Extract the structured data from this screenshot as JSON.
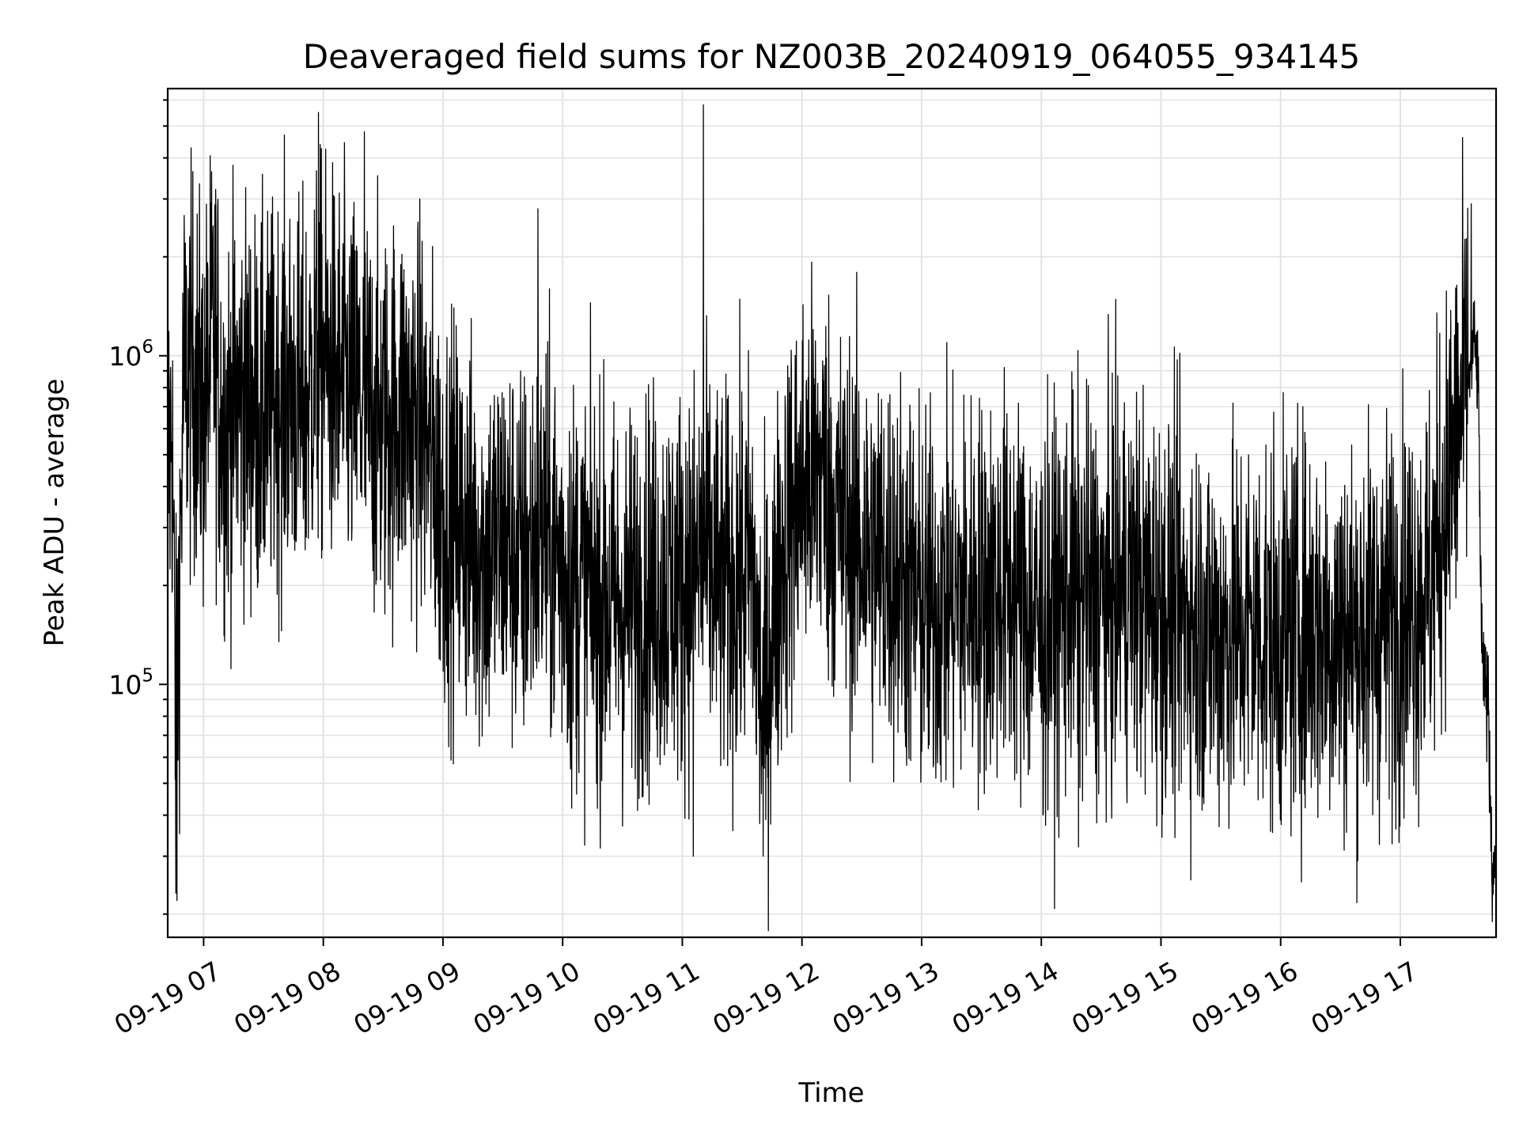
{
  "chart_data": {
    "type": "line",
    "title": "Deaveraged field sums for NZ003B_20240919_064055_934145",
    "xlabel": "Time",
    "ylabel": "Peak ADU - average",
    "yscale": "log",
    "ylim": [
      17000,
      6500000
    ],
    "xlim": [
      "2024-09-19 06:42",
      "2024-09-19 17:48"
    ],
    "grid": true,
    "grid_minor": true,
    "line_color": "#000000",
    "x_ticks": [
      "09-19 07",
      "09-19 08",
      "09-19 09",
      "09-19 10",
      "09-19 11",
      "09-19 12",
      "09-19 13",
      "09-19 14",
      "09-19 15",
      "09-19 16",
      "09-19 17"
    ],
    "x_tick_times": [
      "2024-09-19 07:00",
      "2024-09-19 08:00",
      "2024-09-19 09:00",
      "2024-09-19 10:00",
      "2024-09-19 11:00",
      "2024-09-19 12:00",
      "2024-09-19 13:00",
      "2024-09-19 14:00",
      "2024-09-19 15:00",
      "2024-09-19 16:00",
      "2024-09-19 17:00"
    ],
    "y_ticks": [
      {
        "value": 100000,
        "base": "10",
        "exp": "5"
      },
      {
        "value": 1000000,
        "base": "10",
        "exp": "6"
      }
    ],
    "series": [
      {
        "style": "dense noisy trace (~5000 samples, representative points)",
        "x": [
          "2024-09-19 06:42",
          "2024-09-19 06:43",
          "2024-09-19 06:44",
          "2024-09-19 06:45",
          "2024-09-19 06:46",
          "2024-09-19 06:50",
          "2024-09-19 06:55",
          "2024-09-19 07:00",
          "2024-09-19 07:05",
          "2024-09-19 07:10",
          "2024-09-19 07:15",
          "2024-09-19 07:20",
          "2024-09-19 07:30",
          "2024-09-19 07:40",
          "2024-09-19 07:50",
          "2024-09-19 07:58",
          "2024-09-19 08:05",
          "2024-09-19 08:15",
          "2024-09-19 08:20",
          "2024-09-19 08:30",
          "2024-09-19 08:40",
          "2024-09-19 08:50",
          "2024-09-19 09:00",
          "2024-09-19 09:10",
          "2024-09-19 09:20",
          "2024-09-19 09:30",
          "2024-09-19 09:40",
          "2024-09-19 09:48",
          "2024-09-19 10:00",
          "2024-09-19 10:15",
          "2024-09-19 10:30",
          "2024-09-19 10:45",
          "2024-09-19 11:00",
          "2024-09-19 11:11",
          "2024-09-19 11:20",
          "2024-09-19 11:35",
          "2024-09-19 11:40",
          "2024-09-19 11:50",
          "2024-09-19 12:00",
          "2024-09-19 12:10",
          "2024-09-19 12:20",
          "2024-09-19 12:35",
          "2024-09-19 12:50",
          "2024-09-19 13:00",
          "2024-09-19 13:15",
          "2024-09-19 13:30",
          "2024-09-19 13:45",
          "2024-09-19 14:00",
          "2024-09-19 14:15",
          "2024-09-19 14:30",
          "2024-09-19 14:45",
          "2024-09-19 15:00",
          "2024-09-19 15:15",
          "2024-09-19 15:30",
          "2024-09-19 15:45",
          "2024-09-19 16:00",
          "2024-09-19 16:15",
          "2024-09-19 16:30",
          "2024-09-19 16:45",
          "2024-09-19 17:00",
          "2024-09-19 17:15",
          "2024-09-19 17:20",
          "2024-09-19 17:28",
          "2024-09-19 17:32",
          "2024-09-19 17:35",
          "2024-09-19 17:37",
          "2024-09-19 17:39",
          "2024-09-19 17:41",
          "2024-09-19 17:44",
          "2024-09-19 17:46",
          "2024-09-19 17:48"
        ],
        "values": [
          600000,
          450000,
          700000,
          250000,
          60000,
          850000,
          900000,
          650000,
          1200000,
          600000,
          700000,
          750000,
          650000,
          800000,
          700000,
          1000000,
          900000,
          750000,
          700000,
          600000,
          700000,
          600000,
          350000,
          300000,
          250000,
          280000,
          230000,
          300000,
          230000,
          190000,
          170000,
          200000,
          200000,
          250000,
          190000,
          230000,
          80000,
          250000,
          400000,
          450000,
          300000,
          250000,
          220000,
          170000,
          180000,
          190000,
          200000,
          150000,
          190000,
          180000,
          200000,
          170000,
          160000,
          140000,
          150000,
          140000,
          150000,
          140000,
          150000,
          170000,
          200000,
          300000,
          550000,
          750000,
          900000,
          1100000,
          850000,
          110000,
          90000,
          28000,
          30000
        ],
        "spikes": [
          {
            "x": "2024-09-19 07:58",
            "value": 5500000
          },
          {
            "x": "2024-09-19 08:21",
            "value": 4800000
          },
          {
            "x": "2024-09-19 09:48",
            "value": 2800000
          },
          {
            "x": "2024-09-19 11:11",
            "value": 5800000
          },
          {
            "x": "2024-09-19 17:36",
            "value": 2900000
          }
        ],
        "dips": [
          {
            "x": "2024-09-19 06:47",
            "value": 22000
          },
          {
            "x": "2024-09-19 10:05",
            "value": 42000
          },
          {
            "x": "2024-09-19 11:06",
            "value": 30000
          },
          {
            "x": "2024-09-19 11:41",
            "value": 30000
          },
          {
            "x": "2024-09-19 14:19",
            "value": 32000
          },
          {
            "x": "2024-09-19 17:47",
            "value": 23000
          }
        ]
      }
    ]
  }
}
